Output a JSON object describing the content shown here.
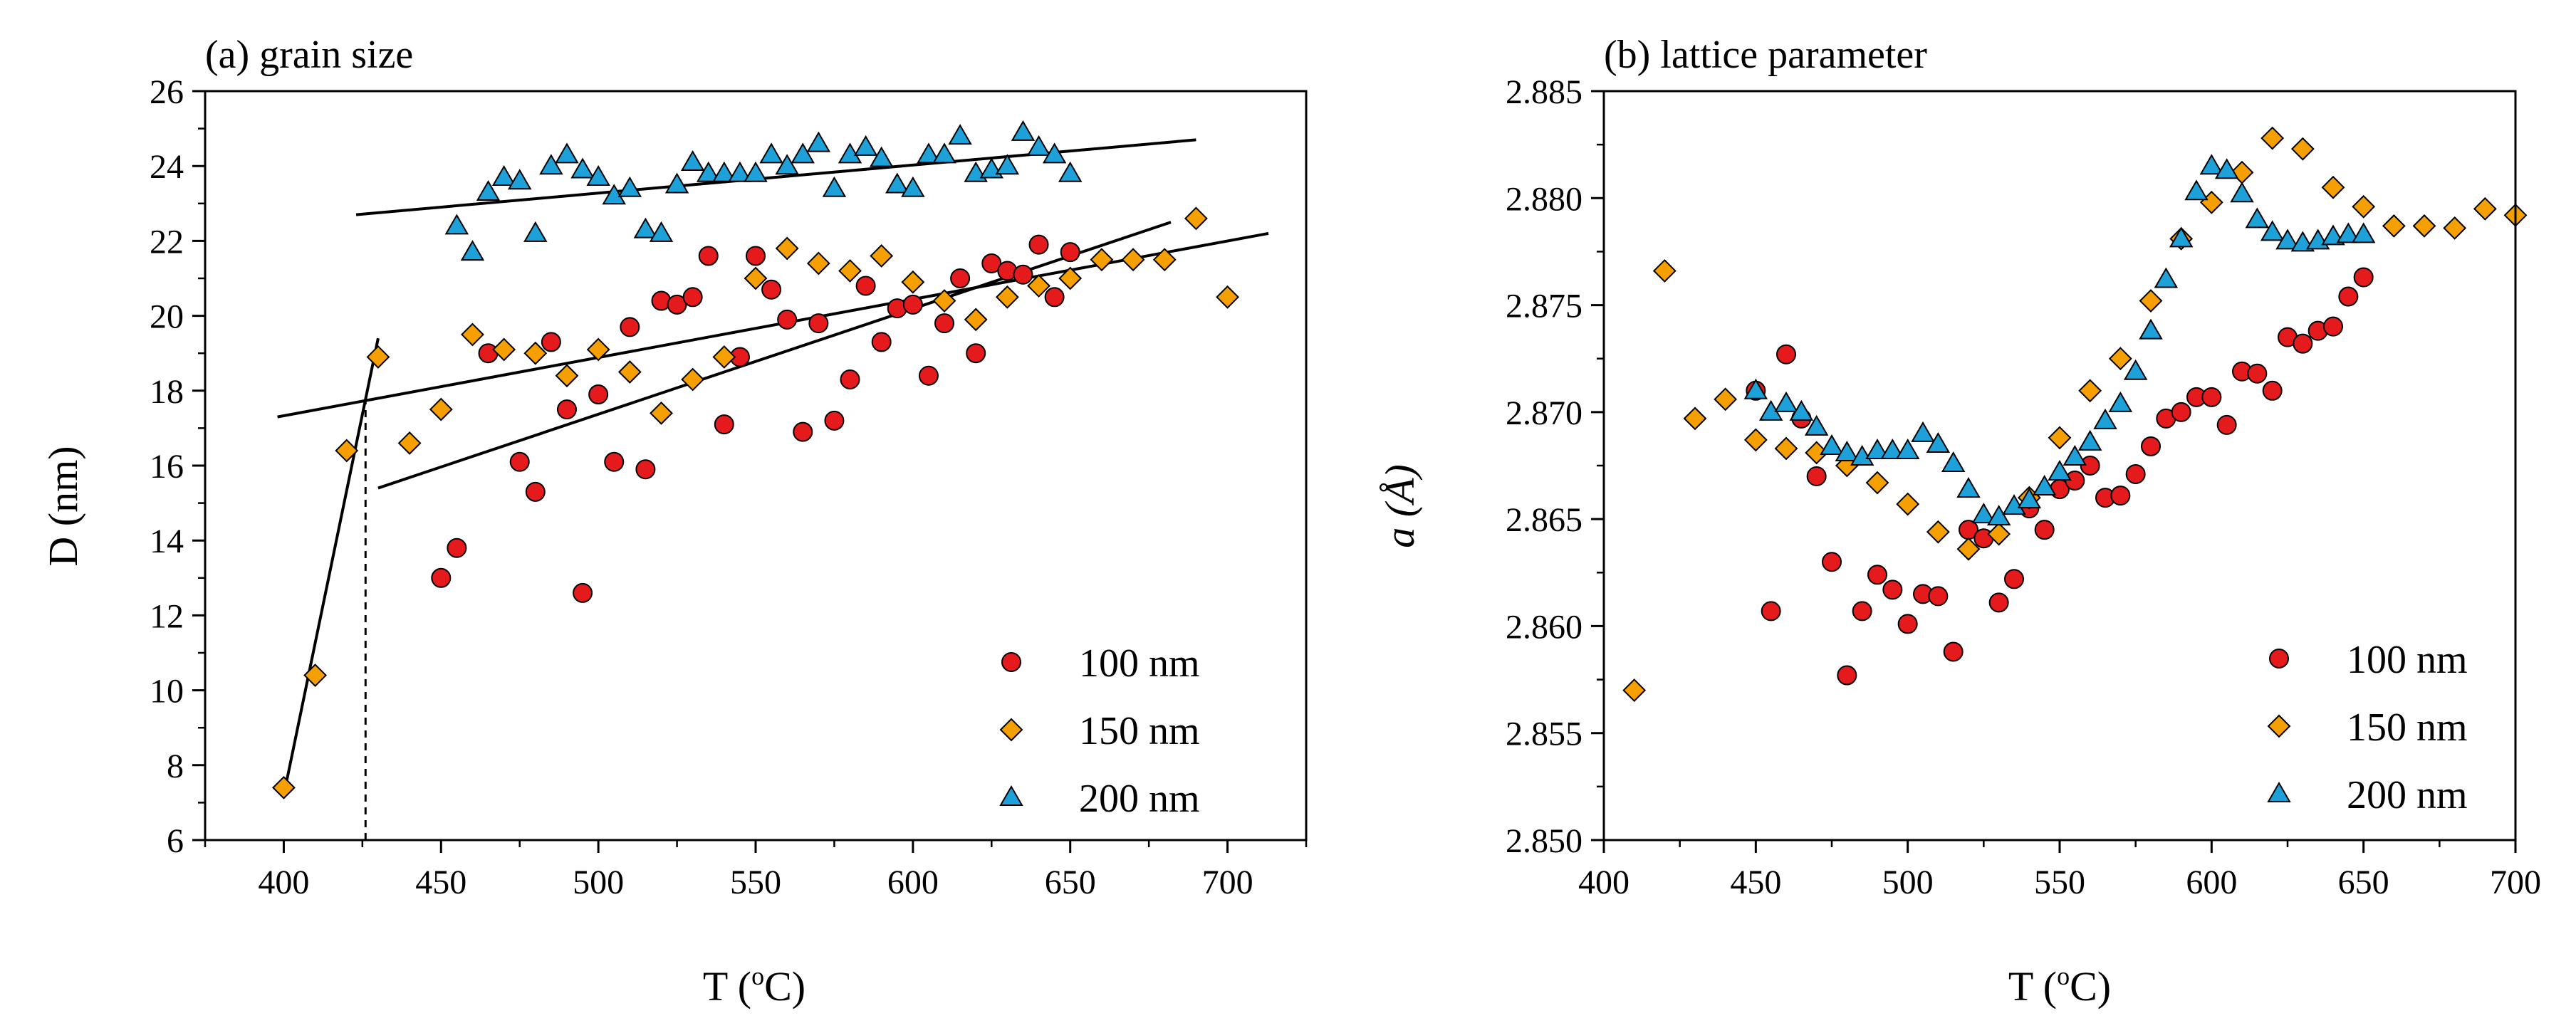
{
  "chart_data": [
    {
      "type": "scatter",
      "id": "a",
      "title": "(a) grain size",
      "xlabel": "T (",
      "xlabel_sup": "o",
      "xlabel_tail": "C)",
      "ylabel": "D (nm)",
      "xlim": [
        375,
        725
      ],
      "ylim": [
        6,
        26
      ],
      "xticks": [
        "400",
        "450",
        "500",
        "550",
        "600",
        "650",
        "700"
      ],
      "yticks": [
        "6",
        "8",
        "10",
        "12",
        "14",
        "16",
        "18",
        "20",
        "22",
        "24",
        "26"
      ],
      "colors": {
        "100 nm": "#e41a1c",
        "150 nm": "#f5a000",
        "200 nm": "#1ea0d8"
      },
      "series": [
        {
          "name": "100 nm",
          "marker": "circle",
          "points": [
            [
              450,
              13.0
            ],
            [
              455,
              13.8
            ],
            [
              465,
              19.0
            ],
            [
              475,
              16.1
            ],
            [
              480,
              15.3
            ],
            [
              485,
              19.3
            ],
            [
              490,
              17.5
            ],
            [
              495,
              12.6
            ],
            [
              500,
              17.9
            ],
            [
              505,
              16.1
            ],
            [
              510,
              19.7
            ],
            [
              515,
              15.9
            ],
            [
              520,
              20.4
            ],
            [
              525,
              20.3
            ],
            [
              530,
              20.5
            ],
            [
              535,
              21.6
            ],
            [
              540,
              17.1
            ],
            [
              545,
              18.9
            ],
            [
              550,
              21.6
            ],
            [
              555,
              20.7
            ],
            [
              560,
              19.9
            ],
            [
              565,
              16.9
            ],
            [
              570,
              19.8
            ],
            [
              575,
              17.2
            ],
            [
              580,
              18.3
            ],
            [
              585,
              20.8
            ],
            [
              590,
              19.3
            ],
            [
              595,
              20.2
            ],
            [
              600,
              20.3
            ],
            [
              605,
              18.4
            ],
            [
              610,
              19.8
            ],
            [
              615,
              21.0
            ],
            [
              620,
              19.0
            ],
            [
              625,
              21.4
            ],
            [
              630,
              21.2
            ],
            [
              635,
              21.1
            ],
            [
              640,
              21.9
            ],
            [
              645,
              20.5
            ],
            [
              650,
              21.7
            ]
          ]
        },
        {
          "name": "150 nm",
          "marker": "diamond",
          "points": [
            [
              400,
              7.4
            ],
            [
              410,
              10.4
            ],
            [
              420,
              16.4
            ],
            [
              430,
              18.9
            ],
            [
              440,
              16.6
            ],
            [
              450,
              17.5
            ],
            [
              460,
              19.5
            ],
            [
              470,
              19.1
            ],
            [
              480,
              19.0
            ],
            [
              490,
              18.4
            ],
            [
              500,
              19.1
            ],
            [
              510,
              18.5
            ],
            [
              520,
              17.4
            ],
            [
              530,
              18.3
            ],
            [
              540,
              18.9
            ],
            [
              550,
              21.0
            ],
            [
              560,
              21.8
            ],
            [
              570,
              21.4
            ],
            [
              580,
              21.2
            ],
            [
              590,
              21.6
            ],
            [
              600,
              20.9
            ],
            [
              610,
              20.4
            ],
            [
              620,
              19.9
            ],
            [
              630,
              20.5
            ],
            [
              640,
              20.8
            ],
            [
              650,
              21.0
            ],
            [
              660,
              21.5
            ],
            [
              670,
              21.5
            ],
            [
              680,
              21.5
            ],
            [
              690,
              22.6
            ],
            [
              700,
              20.5
            ]
          ]
        },
        {
          "name": "200 nm",
          "marker": "triangle",
          "points": [
            [
              455,
              22.4
            ],
            [
              460,
              21.7
            ],
            [
              465,
              23.3
            ],
            [
              470,
              23.7
            ],
            [
              475,
              23.6
            ],
            [
              480,
              22.2
            ],
            [
              485,
              24.0
            ],
            [
              490,
              24.3
            ],
            [
              495,
              23.9
            ],
            [
              500,
              23.7
            ],
            [
              505,
              23.2
            ],
            [
              510,
              23.4
            ],
            [
              515,
              22.3
            ],
            [
              520,
              22.2
            ],
            [
              525,
              23.5
            ],
            [
              530,
              24.1
            ],
            [
              535,
              23.8
            ],
            [
              540,
              23.8
            ],
            [
              545,
              23.8
            ],
            [
              550,
              23.8
            ],
            [
              555,
              24.3
            ],
            [
              560,
              24.0
            ],
            [
              565,
              24.3
            ],
            [
              570,
              24.6
            ],
            [
              575,
              23.4
            ],
            [
              580,
              24.3
            ],
            [
              585,
              24.5
            ],
            [
              590,
              24.2
            ],
            [
              595,
              23.5
            ],
            [
              600,
              23.4
            ],
            [
              605,
              24.3
            ],
            [
              610,
              24.3
            ],
            [
              615,
              24.8
            ],
            [
              620,
              23.8
            ],
            [
              625,
              23.9
            ],
            [
              630,
              24.0
            ],
            [
              635,
              24.9
            ],
            [
              640,
              24.5
            ],
            [
              645,
              24.3
            ],
            [
              650,
              23.8
            ]
          ]
        }
      ],
      "fit_lines": [
        {
          "x": [
            400,
            430
          ],
          "y": [
            7.2,
            19.4
          ]
        },
        {
          "x": [
            398,
            713
          ],
          "y": [
            17.3,
            22.2
          ]
        },
        {
          "x": [
            430,
            682
          ],
          "y": [
            15.4,
            22.5
          ]
        },
        {
          "x": [
            423,
            690
          ],
          "y": [
            22.7,
            24.7
          ]
        }
      ],
      "guide_line": {
        "x": 426,
        "y": [
          6,
          17.7
        ]
      },
      "legend": {
        "position": "bottom-right",
        "labels": [
          "100 nm",
          "150 nm",
          "200 nm"
        ]
      }
    },
    {
      "type": "scatter",
      "id": "b",
      "title": "(b) lattice parameter",
      "xlabel": "T (",
      "xlabel_sup": "o",
      "xlabel_tail": "C)",
      "ylabel": "a (Å)",
      "xlim": [
        400,
        700
      ],
      "ylim": [
        2.85,
        2.885
      ],
      "xticks": [
        "400",
        "450",
        "500",
        "550",
        "600",
        "650",
        "700"
      ],
      "yticks": [
        "2.850",
        "2.855",
        "2.860",
        "2.865",
        "2.870",
        "2.875",
        "2.880",
        "2.885"
      ],
      "colors": {
        "100 nm": "#e41a1c",
        "150 nm": "#f5a000",
        "200 nm": "#1ea0d8"
      },
      "series": [
        {
          "name": "100 nm",
          "marker": "circle",
          "points": [
            [
              450,
              2.871
            ],
            [
              455,
              2.8607
            ],
            [
              460,
              2.8727
            ],
            [
              465,
              2.8697
            ],
            [
              470,
              2.867
            ],
            [
              475,
              2.863
            ],
            [
              480,
              2.8577
            ],
            [
              485,
              2.8607
            ],
            [
              490,
              2.8624
            ],
            [
              495,
              2.8617
            ],
            [
              500,
              2.8601
            ],
            [
              505,
              2.8615
            ],
            [
              510,
              2.8614
            ],
            [
              515,
              2.8588
            ],
            [
              520,
              2.8645
            ],
            [
              525,
              2.8641
            ],
            [
              530,
              2.8611
            ],
            [
              535,
              2.8622
            ],
            [
              540,
              2.8655
            ],
            [
              545,
              2.8645
            ],
            [
              550,
              2.8664
            ],
            [
              555,
              2.8668
            ],
            [
              560,
              2.8675
            ],
            [
              565,
              2.866
            ],
            [
              570,
              2.8661
            ],
            [
              575,
              2.8671
            ],
            [
              580,
              2.8684
            ],
            [
              585,
              2.8697
            ],
            [
              590,
              2.87
            ],
            [
              595,
              2.8707
            ],
            [
              600,
              2.8707
            ],
            [
              605,
              2.8694
            ],
            [
              610,
              2.8719
            ],
            [
              615,
              2.8718
            ],
            [
              620,
              2.871
            ],
            [
              625,
              2.8735
            ],
            [
              630,
              2.8732
            ],
            [
              635,
              2.8738
            ],
            [
              640,
              2.874
            ],
            [
              645,
              2.8754
            ],
            [
              650,
              2.8763
            ]
          ]
        },
        {
          "name": "150 nm",
          "marker": "diamond",
          "points": [
            [
              410,
              2.857
            ],
            [
              420,
              2.8766
            ],
            [
              430,
              2.8697
            ],
            [
              440,
              2.8706
            ],
            [
              450,
              2.8687
            ],
            [
              460,
              2.8683
            ],
            [
              470,
              2.8681
            ],
            [
              480,
              2.8675
            ],
            [
              490,
              2.8667
            ],
            [
              500,
              2.8657
            ],
            [
              510,
              2.8644
            ],
            [
              520,
              2.8636
            ],
            [
              530,
              2.8643
            ],
            [
              540,
              2.866
            ],
            [
              550,
              2.8688
            ],
            [
              560,
              2.871
            ],
            [
              570,
              2.8725
            ],
            [
              580,
              2.8752
            ],
            [
              590,
              2.8781
            ],
            [
              600,
              2.8798
            ],
            [
              610,
              2.8812
            ],
            [
              620,
              2.8828
            ],
            [
              630,
              2.8823
            ],
            [
              640,
              2.8805
            ],
            [
              650,
              2.8796
            ],
            [
              660,
              2.8787
            ],
            [
              670,
              2.8787
            ],
            [
              680,
              2.8786
            ],
            [
              690,
              2.8795
            ],
            [
              700,
              2.8792
            ]
          ]
        },
        {
          "name": "200 nm",
          "marker": "triangle",
          "points": [
            [
              450,
              2.871
            ],
            [
              455,
              2.87
            ],
            [
              460,
              2.8704
            ],
            [
              465,
              2.87
            ],
            [
              470,
              2.8693
            ],
            [
              475,
              2.8684
            ],
            [
              480,
              2.8681
            ],
            [
              485,
              2.8679
            ],
            [
              490,
              2.8682
            ],
            [
              495,
              2.8682
            ],
            [
              500,
              2.8682
            ],
            [
              505,
              2.869
            ],
            [
              510,
              2.8685
            ],
            [
              515,
              2.8676
            ],
            [
              520,
              2.8664
            ],
            [
              525,
              2.8652
            ],
            [
              530,
              2.8651
            ],
            [
              535,
              2.8656
            ],
            [
              540,
              2.8659
            ],
            [
              545,
              2.8665
            ],
            [
              550,
              2.8672
            ],
            [
              555,
              2.8679
            ],
            [
              560,
              2.8686
            ],
            [
              565,
              2.8696
            ],
            [
              570,
              2.8704
            ],
            [
              575,
              2.8719
            ],
            [
              580,
              2.8738
            ],
            [
              585,
              2.8762
            ],
            [
              590,
              2.8781
            ],
            [
              595,
              2.8803
            ],
            [
              600,
              2.8815
            ],
            [
              605,
              2.8813
            ],
            [
              610,
              2.8802
            ],
            [
              615,
              2.879
            ],
            [
              620,
              2.8784
            ],
            [
              625,
              2.878
            ],
            [
              630,
              2.8779
            ],
            [
              635,
              2.878
            ],
            [
              640,
              2.8782
            ],
            [
              645,
              2.8783
            ],
            [
              650,
              2.8783
            ]
          ]
        }
      ],
      "legend": {
        "position": "bottom-right",
        "labels": [
          "100 nm",
          "150 nm",
          "200 nm"
        ]
      }
    }
  ]
}
